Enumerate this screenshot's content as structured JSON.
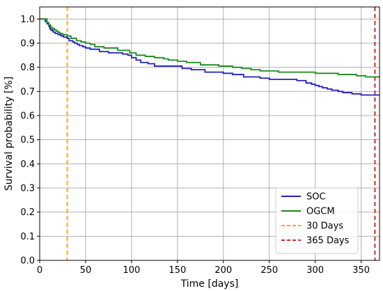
{
  "chart_data": {
    "type": "line",
    "title": "",
    "xlabel": "Time [days]",
    "ylabel": "Survival probability [%]",
    "xlim": [
      0,
      370
    ],
    "ylim": [
      0,
      1.05
    ],
    "xticks": [
      0,
      50,
      100,
      150,
      200,
      250,
      300,
      350
    ],
    "yticks": [
      0.0,
      0.1,
      0.2,
      0.3,
      0.4,
      0.5,
      0.6,
      0.7,
      0.8,
      0.9,
      1.0
    ],
    "grid": true,
    "legend_position": "lower-right",
    "series": [
      {
        "name": "SOC",
        "color": "#1f1fbf",
        "step": true,
        "x": [
          0,
          6,
          8,
          10,
          11,
          12,
          14,
          15,
          17,
          20,
          23,
          26,
          30,
          32,
          36,
          38,
          41,
          43,
          47,
          50,
          55,
          65,
          75,
          90,
          96,
          100,
          105,
          110,
          118,
          125,
          155,
          165,
          180,
          200,
          210,
          222,
          240,
          250,
          280,
          290,
          296,
          300,
          304,
          308,
          313,
          318,
          325,
          330,
          340,
          350,
          358,
          365,
          370
        ],
        "y": [
          1.0,
          0.99,
          0.98,
          0.97,
          0.96,
          0.955,
          0.95,
          0.945,
          0.94,
          0.935,
          0.93,
          0.925,
          0.92,
          0.91,
          0.905,
          0.9,
          0.895,
          0.89,
          0.885,
          0.88,
          0.875,
          0.865,
          0.86,
          0.855,
          0.85,
          0.84,
          0.83,
          0.82,
          0.815,
          0.805,
          0.795,
          0.79,
          0.78,
          0.775,
          0.77,
          0.76,
          0.755,
          0.75,
          0.745,
          0.735,
          0.73,
          0.725,
          0.72,
          0.715,
          0.71,
          0.705,
          0.7,
          0.695,
          0.69,
          0.685,
          0.685,
          0.685,
          0.685
        ]
      },
      {
        "name": "OGCM",
        "color": "#1a8a1a",
        "step": true,
        "x": [
          0,
          8,
          10,
          12,
          14,
          16,
          18,
          20,
          22,
          25,
          30,
          34,
          40,
          45,
          50,
          55,
          60,
          70,
          85,
          98,
          105,
          115,
          125,
          135,
          140,
          150,
          160,
          175,
          195,
          210,
          220,
          230,
          240,
          260,
          300,
          325,
          345,
          355,
          370
        ],
        "y": [
          1.0,
          0.985,
          0.975,
          0.965,
          0.96,
          0.955,
          0.95,
          0.945,
          0.94,
          0.935,
          0.93,
          0.92,
          0.91,
          0.905,
          0.9,
          0.895,
          0.885,
          0.88,
          0.87,
          0.86,
          0.85,
          0.845,
          0.84,
          0.835,
          0.83,
          0.825,
          0.82,
          0.81,
          0.805,
          0.8,
          0.795,
          0.79,
          0.785,
          0.78,
          0.775,
          0.77,
          0.765,
          0.76,
          0.76
        ]
      }
    ],
    "reference_lines": [
      {
        "name": "30 Days",
        "x": 30,
        "color": "#f5a623",
        "dash": true
      },
      {
        "name": "365 Days",
        "x": 365,
        "color": "#d62728",
        "dash": true
      }
    ]
  }
}
